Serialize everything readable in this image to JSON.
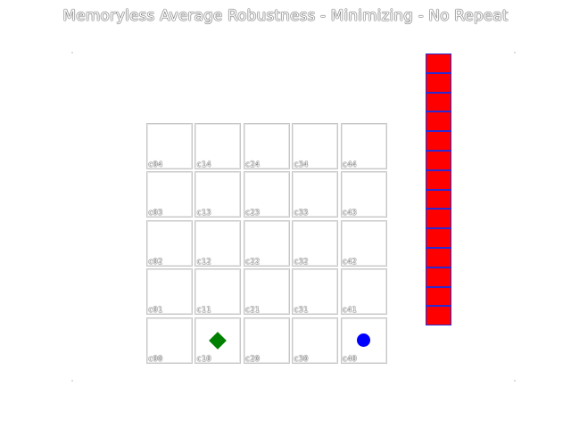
{
  "title": "Memoryless Average Robustness - Minimizing - No Repeat",
  "grid": {
    "rows": [
      [
        "c04",
        "c14",
        "c24",
        "c34",
        "c44"
      ],
      [
        "c03",
        "c13",
        "c23",
        "c33",
        "c43"
      ],
      [
        "c02",
        "c12",
        "c22",
        "c32",
        "c42"
      ],
      [
        "c01",
        "c11",
        "c21",
        "c31",
        "c41"
      ],
      [
        "c00",
        "c10",
        "c20",
        "c30",
        "c40"
      ]
    ]
  },
  "tokens": [
    {
      "name": "green-diamond-token",
      "shape": "diamond",
      "cell": "c10",
      "color": "#008000"
    },
    {
      "name": "blue-circle-token",
      "shape": "circle",
      "cell": "c40",
      "color": "#0000ff"
    }
  ],
  "stack": {
    "count": 14,
    "fill_color": "#ff0000",
    "border_color": "#2a2ad0"
  }
}
